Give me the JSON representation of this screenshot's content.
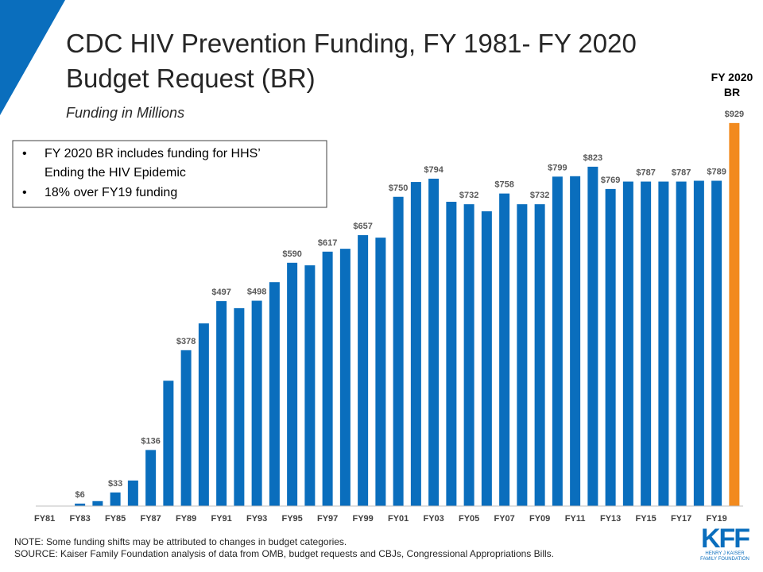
{
  "title_lines": [
    "CDC HIV Prevention Funding, FY 1981- FY 2020",
    "Budget Request (BR)"
  ],
  "subtitle": "Funding in Millions",
  "bullets": [
    "FY 2020 BR includes funding for HHS’",
    "Ending the HIV Epidemic",
    "18% over FY19 funding"
  ],
  "notes": [
    "NOTE: Some funding shifts may be attributed to changes in budget categories.",
    "SOURCE: Kaiser Family Foundation analysis of data from OMB, budget requests and CBJs, Congressional Appropriations Bills."
  ],
  "logo": {
    "name": "KFF",
    "sub_lines": [
      "HENRY J KAISER",
      "FAMILY FOUNDATION"
    ]
  },
  "chart_data": {
    "type": "bar",
    "highlight_label_lines": [
      "FY 2020",
      "BR"
    ],
    "categories": [
      "FY81",
      null,
      "FY83",
      null,
      "FY85",
      null,
      "FY87",
      null,
      "FY89",
      null,
      "FY91",
      null,
      "FY93",
      null,
      "FY95",
      null,
      "FY97",
      null,
      "FY99",
      null,
      "FY01",
      null,
      "FY03",
      null,
      "FY05",
      null,
      "FY07",
      null,
      "FY09",
      null,
      "FY11",
      null,
      "FY13",
      null,
      "FY15",
      null,
      "FY17",
      null,
      "FY19",
      null
    ],
    "values": [
      0,
      0,
      6,
      12,
      33,
      62,
      136,
      304,
      378,
      443,
      497,
      480,
      498,
      543,
      590,
      584,
      617,
      624,
      657,
      651,
      750,
      786,
      794,
      738,
      732,
      715,
      758,
      732,
      732,
      799,
      800,
      823,
      769,
      787,
      787,
      787,
      787,
      789,
      789,
      929
    ],
    "value_labels": [
      null,
      null,
      "$6",
      null,
      "$33",
      null,
      "$136",
      null,
      "$378",
      null,
      "$497",
      null,
      "$498",
      null,
      "$590",
      null,
      "$617",
      null,
      "$657",
      null,
      "$750",
      null,
      "$794",
      null,
      "$732",
      null,
      "$758",
      null,
      "$732",
      "$799",
      null,
      "$823",
      "$769",
      null,
      "$787",
      null,
      "$787",
      null,
      "$789",
      "$929"
    ],
    "colors": [
      "#0a6ebd",
      "#0a6ebd",
      "#0a6ebd",
      "#0a6ebd",
      "#0a6ebd",
      "#0a6ebd",
      "#0a6ebd",
      "#0a6ebd",
      "#0a6ebd",
      "#0a6ebd",
      "#0a6ebd",
      "#0a6ebd",
      "#0a6ebd",
      "#0a6ebd",
      "#0a6ebd",
      "#0a6ebd",
      "#0a6ebd",
      "#0a6ebd",
      "#0a6ebd",
      "#0a6ebd",
      "#0a6ebd",
      "#0a6ebd",
      "#0a6ebd",
      "#0a6ebd",
      "#0a6ebd",
      "#0a6ebd",
      "#0a6ebd",
      "#0a6ebd",
      "#0a6ebd",
      "#0a6ebd",
      "#0a6ebd",
      "#0a6ebd",
      "#0a6ebd",
      "#0a6ebd",
      "#0a6ebd",
      "#0a6ebd",
      "#0a6ebd",
      "#0a6ebd",
      "#0a6ebd",
      "#f28a1e"
    ],
    "ylim": [
      0,
      1000
    ]
  }
}
